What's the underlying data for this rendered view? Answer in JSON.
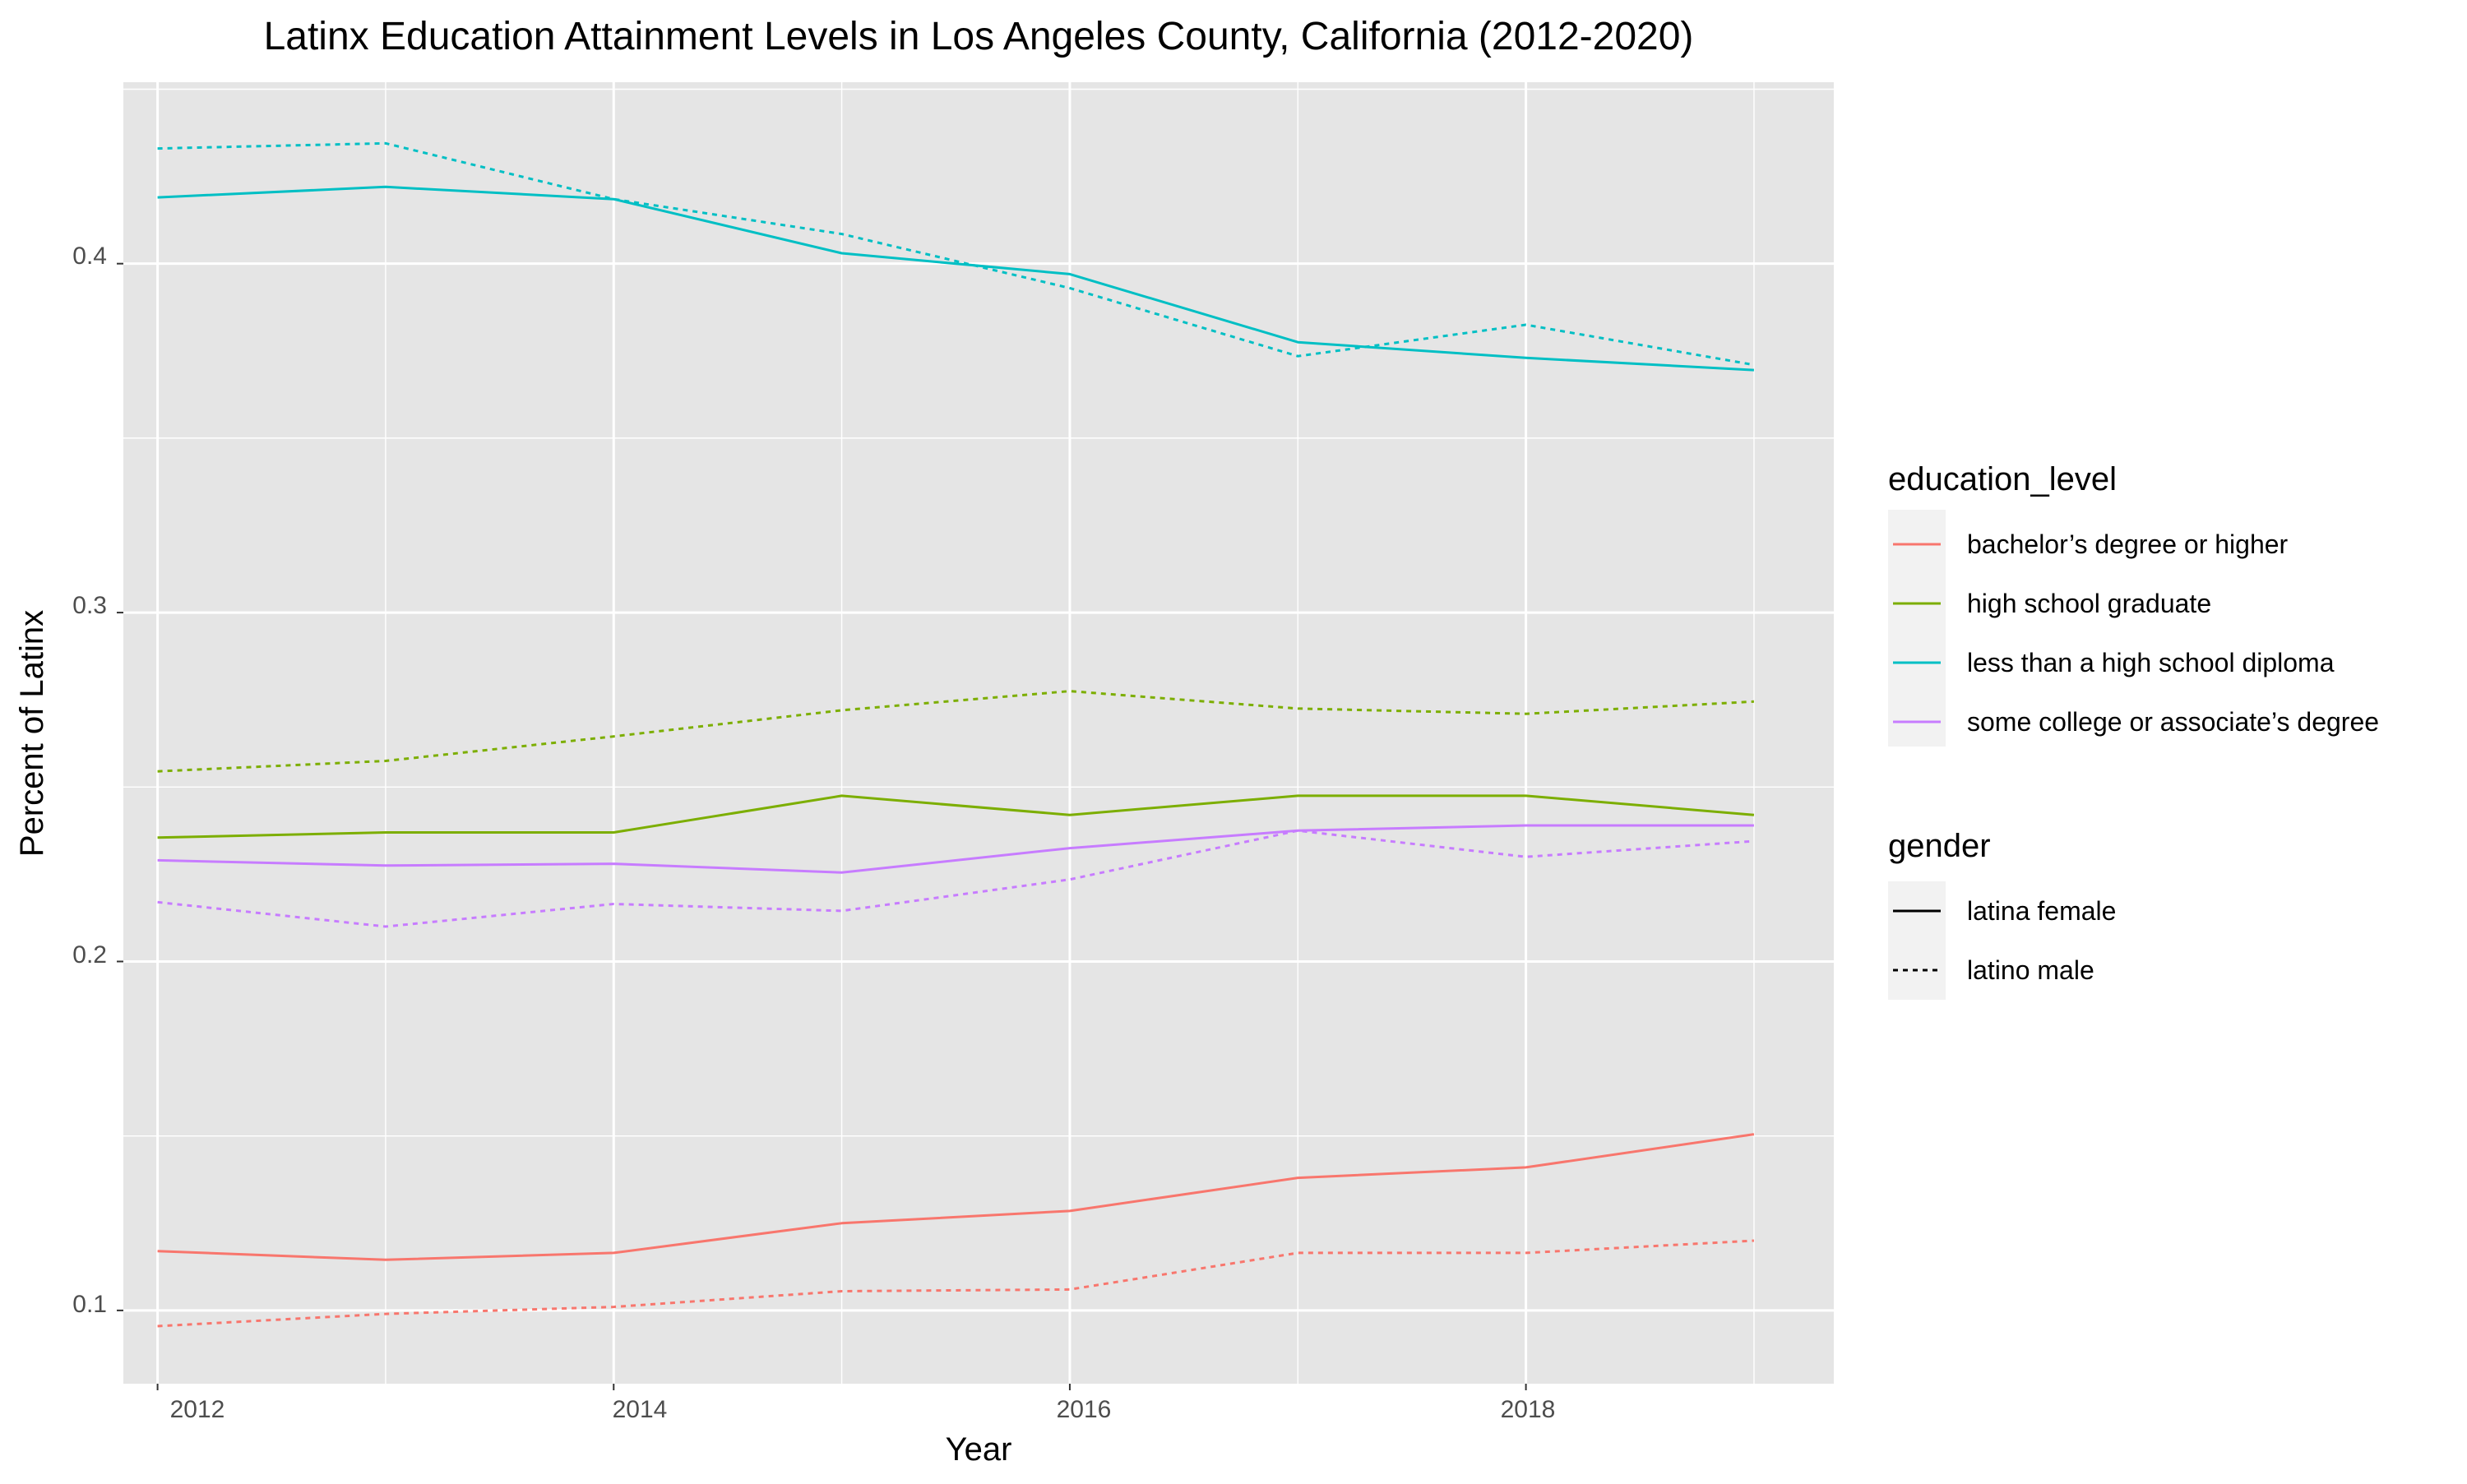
{
  "chart_data": {
    "type": "line",
    "title": "Latinx Education Attainment Levels in Los Angeles County, California (2012-2020)",
    "xlabel": "Year",
    "ylabel": "Percent of Latinx",
    "xlim": [
      2011.85,
      2019.35
    ],
    "ylim": [
      0.079,
      0.452
    ],
    "x_ticks": [
      2012,
      2014,
      2016,
      2018
    ],
    "x_tick_labels": [
      "2012",
      "2014",
      "2016",
      "2018"
    ],
    "y_ticks": [
      0.1,
      0.2,
      0.3,
      0.4
    ],
    "y_tick_labels": [
      "0.1",
      "0.2",
      "0.3",
      "0.4"
    ],
    "x": [
      2012,
      2013,
      2014,
      2015,
      2016,
      2017,
      2018,
      2019
    ],
    "legend_position": "right",
    "colors": {
      "panel": "#e5e5e5",
      "grid": "#ffffff",
      "legend_key": "#f2f2f2",
      "text": "#000000",
      "tick_text": "#4d4d4d"
    },
    "legends": {
      "color": {
        "title": "education_level",
        "items": [
          {
            "label": "bachelor’s degree or higher",
            "color": "#f8766d"
          },
          {
            "label": "high school graduate",
            "color": "#7cae00"
          },
          {
            "label": "less than a high school diploma",
            "color": "#00bfc4"
          },
          {
            "label": "some college or associate’s degree",
            "color": "#c77cff"
          }
        ]
      },
      "linetype": {
        "title": "gender",
        "items": [
          {
            "label": "latina female",
            "dash": "solid"
          },
          {
            "label": "latino male",
            "dash": "dotted"
          }
        ]
      }
    },
    "series": [
      {
        "name": "bachelor’s degree or higher — latina female",
        "color": "#f8766d",
        "dash": "solid",
        "values": [
          0.117,
          0.1145,
          0.1165,
          0.125,
          0.1285,
          0.138,
          0.141,
          0.1505
        ]
      },
      {
        "name": "bachelor’s degree or higher — latino male",
        "color": "#f8766d",
        "dash": "dotted",
        "values": [
          0.0955,
          0.099,
          0.101,
          0.1055,
          0.106,
          0.1165,
          0.1165,
          0.12
        ]
      },
      {
        "name": "high school graduate — latina female",
        "color": "#7cae00",
        "dash": "solid",
        "values": [
          0.2355,
          0.237,
          0.237,
          0.2475,
          0.242,
          0.2475,
          0.2475,
          0.242
        ]
      },
      {
        "name": "high school graduate — latino male",
        "color": "#7cae00",
        "dash": "dotted",
        "values": [
          0.2545,
          0.2575,
          0.2645,
          0.272,
          0.2775,
          0.2725,
          0.271,
          0.2745
        ]
      },
      {
        "name": "less than a high school diploma — latina female",
        "color": "#00bfc4",
        "dash": "solid",
        "values": [
          0.419,
          0.422,
          0.4185,
          0.403,
          0.397,
          0.3775,
          0.373,
          0.3695
        ]
      },
      {
        "name": "less than a high school diploma — latino male",
        "color": "#00bfc4",
        "dash": "dotted",
        "values": [
          0.433,
          0.4345,
          0.4185,
          0.4085,
          0.393,
          0.3735,
          0.3825,
          0.371
        ]
      },
      {
        "name": "some college or associate’s degree — latina female",
        "color": "#c77cff",
        "dash": "solid",
        "values": [
          0.229,
          0.2275,
          0.228,
          0.2255,
          0.2325,
          0.2375,
          0.239,
          0.239
        ]
      },
      {
        "name": "some college or associate’s degree — latino male",
        "color": "#c77cff",
        "dash": "dotted",
        "values": [
          0.217,
          0.21,
          0.2165,
          0.2145,
          0.2235,
          0.2375,
          0.23,
          0.2345
        ]
      }
    ]
  }
}
